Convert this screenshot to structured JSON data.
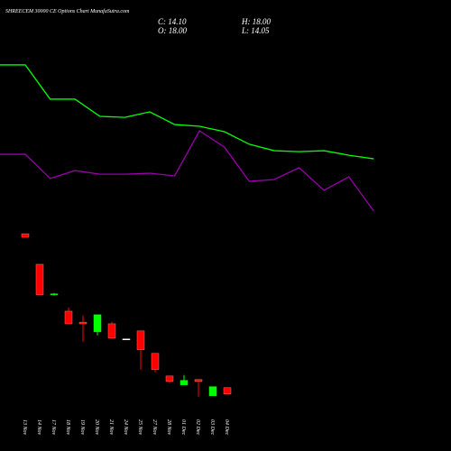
{
  "header": {
    "title": "SHREECEM 30000 CE Options Chart MunafaSutra.com",
    "close": "C: 14.10",
    "open": "O: 18.00",
    "high": "H: 18.00",
    "low": "L: 14.05"
  },
  "chart_data": {
    "type": "candlestick",
    "categories": [
      "13 Nov",
      "14 Nov",
      "17 Nov",
      "18 Nov",
      "19 Nov",
      "20 Nov",
      "21 Nov",
      "24 Nov",
      "25 Nov",
      "27 Nov",
      "28 Nov",
      "01 Dec",
      "02 Dec",
      "03 Dec",
      "04 Dec"
    ],
    "open": [
      113.2,
      94.3,
      75.4,
      65.3,
      58.5,
      52.5,
      57.5,
      48.1,
      53.1,
      39.2,
      25.2,
      19.7,
      23.0,
      13.0,
      18
    ],
    "high": [
      113.2,
      94.3,
      76.5,
      67.6,
      62.6,
      63.1,
      58.7,
      48.1,
      53.1,
      39.2,
      25.2,
      25.8,
      23.0,
      18.6,
      18
    ],
    "low": [
      111.0,
      75.4,
      75.0,
      57.5,
      46.4,
      50.3,
      48.1,
      48.1,
      29.1,
      27.5,
      20.8,
      19.7,
      12.4,
      13.0,
      14.05
    ],
    "close": [
      111.0,
      75.4,
      76.0,
      57.5,
      57.5,
      63.1,
      48.6,
      48.1,
      41.4,
      29.1,
      21.9,
      22.5,
      21.9,
      18.6,
      14.1
    ],
    "up_color": "#00ff00",
    "down_color": "#ff0000",
    "flat_color": "#ffffff",
    "ylim": [
      0,
      130
    ],
    "y2lim": [
      0,
      100
    ],
    "series": [
      {
        "color": "#00ff00",
        "axis": "y2",
        "values": [
          84.8,
          66.7,
          66.7,
          57.6,
          57.1,
          60.0,
          53.3,
          52.4,
          49.5,
          42.9,
          39.5,
          39.0,
          39.5,
          37.1,
          35.2
        ]
      },
      {
        "color": "#9900aa",
        "axis": "y2",
        "values": [
          37.6,
          24.8,
          29.0,
          27.1,
          27.1,
          27.6,
          26.2,
          50.0,
          41.4,
          23.3,
          24.3,
          30.5,
          18.6,
          25.7,
          7.6
        ]
      }
    ]
  }
}
